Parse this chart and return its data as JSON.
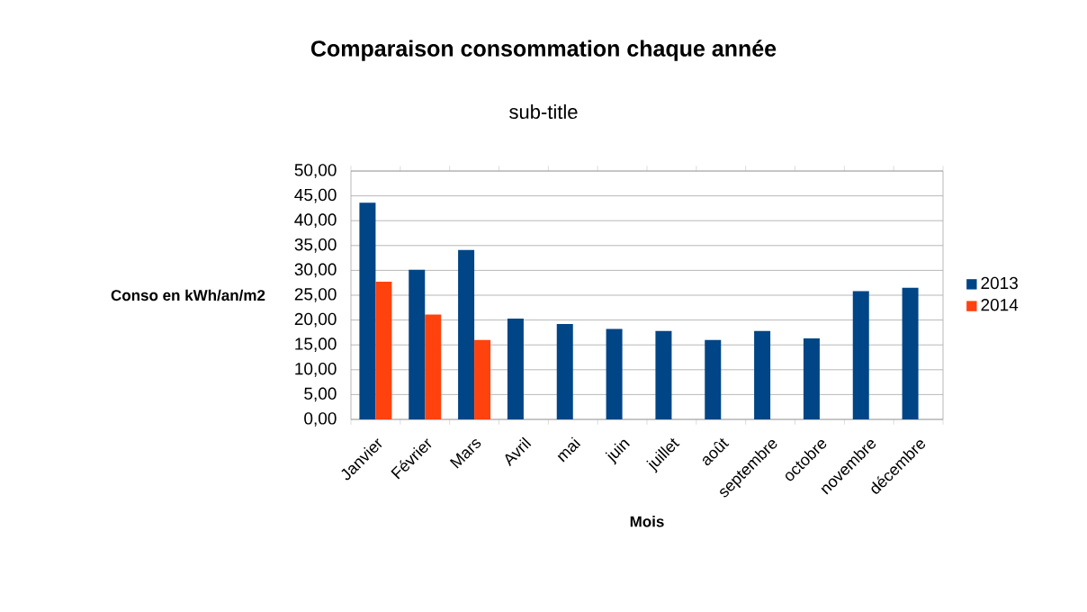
{
  "chart_data": {
    "type": "bar",
    "title": "Comparaison consommation chaque année",
    "subtitle": "sub-title",
    "xlabel": "Mois",
    "ylabel": "Conso en kWh/an/m2",
    "categories": [
      "Janvier",
      "Février",
      "Mars",
      "Avril",
      "mai",
      "juin",
      "juillet",
      "août",
      "septembre",
      "octobre",
      "novembre",
      "décembre"
    ],
    "series": [
      {
        "name": "2013",
        "color": "#004586",
        "values": [
          43.6,
          30.1,
          34.1,
          20.3,
          19.2,
          18.2,
          17.8,
          16.0,
          17.8,
          16.3,
          25.8,
          26.5
        ]
      },
      {
        "name": "2014",
        "color": "#ff420e",
        "values": [
          27.7,
          21.1,
          16.0,
          null,
          null,
          null,
          null,
          null,
          null,
          null,
          null,
          null
        ]
      }
    ],
    "ylim": [
      0,
      50
    ],
    "yticks": [
      {
        "value": 0,
        "label": "0,00"
      },
      {
        "value": 5,
        "label": "5,00"
      },
      {
        "value": 10,
        "label": "10,00"
      },
      {
        "value": 15,
        "label": "15,00"
      },
      {
        "value": 20,
        "label": "20,00"
      },
      {
        "value": 25,
        "label": "25,00"
      },
      {
        "value": 30,
        "label": "30,00"
      },
      {
        "value": 35,
        "label": "35,00"
      },
      {
        "value": 40,
        "label": "40,00"
      },
      {
        "value": 45,
        "label": "45,00"
      },
      {
        "value": 50,
        "label": "50,00"
      }
    ],
    "grid": "y",
    "legend": "right"
  }
}
